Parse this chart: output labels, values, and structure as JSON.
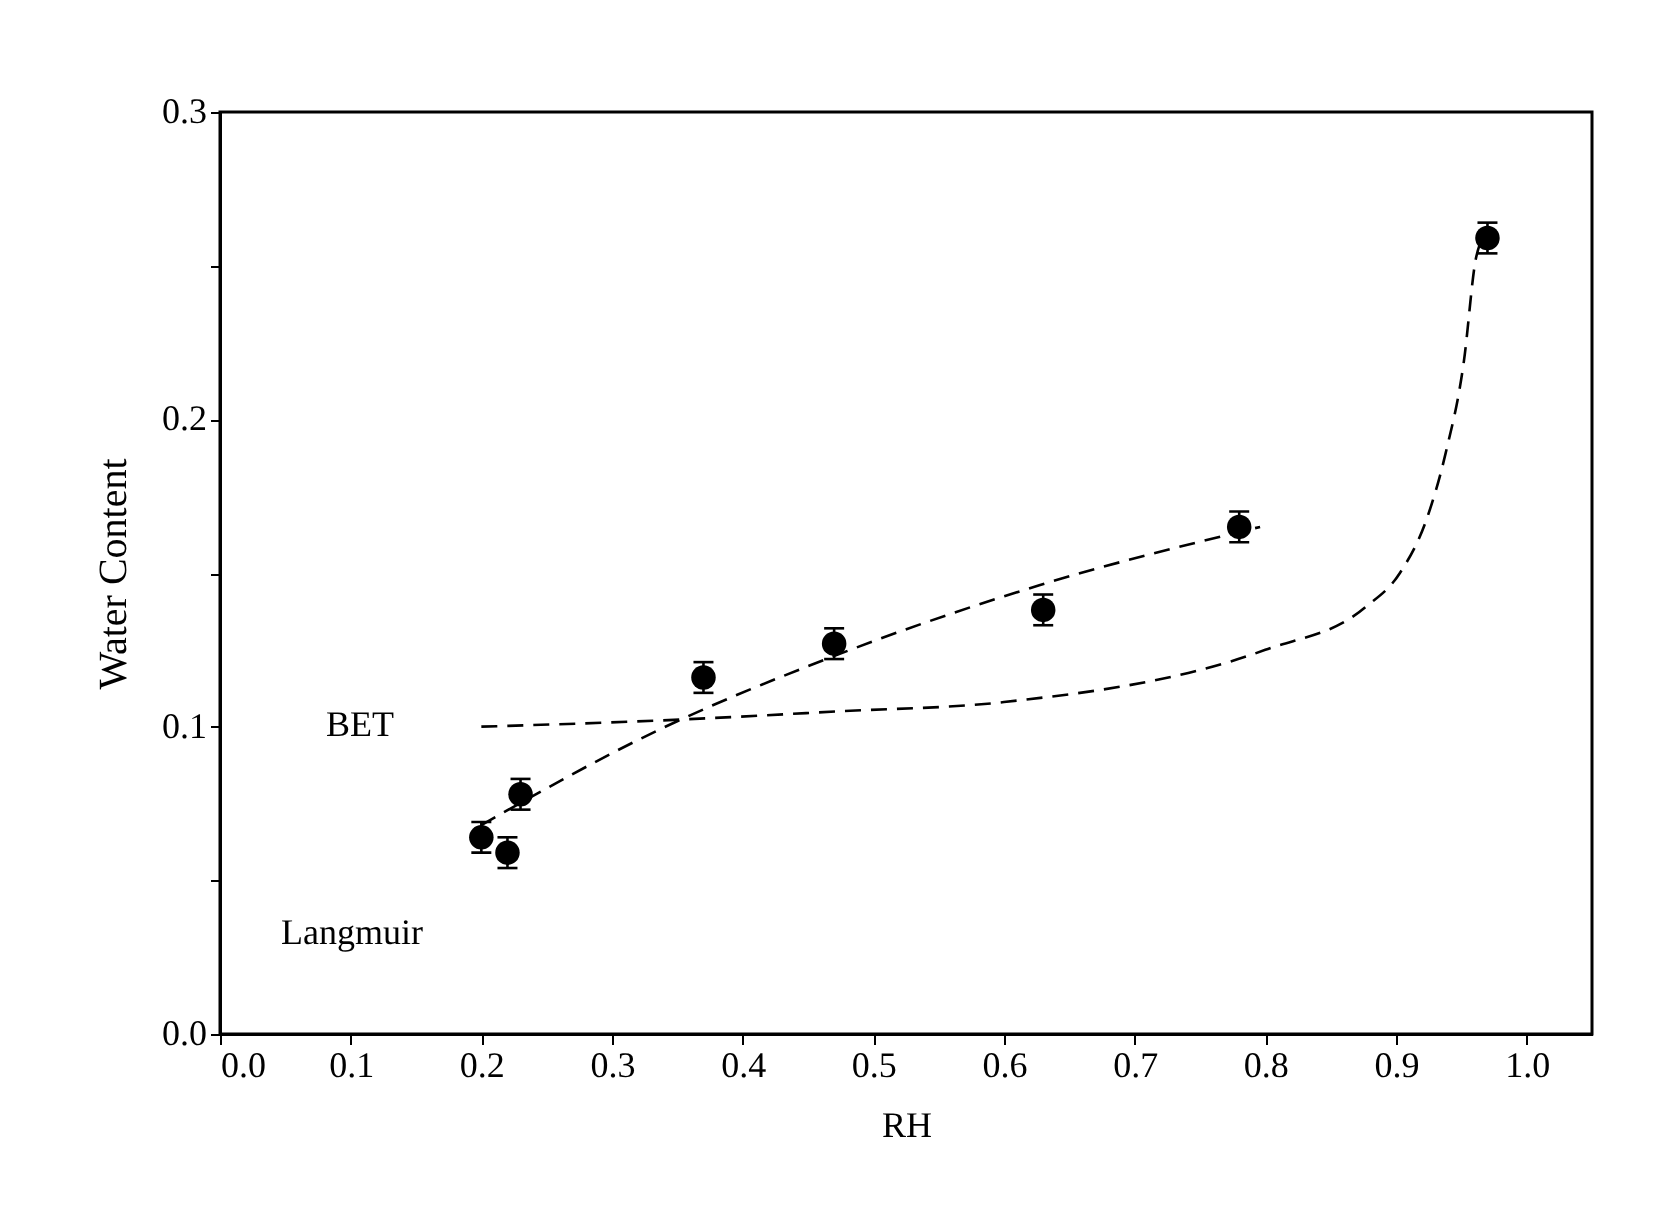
{
  "chart_data": {
    "type": "scatter",
    "xlabel": "RH",
    "ylabel": "Water Content",
    "xlim": [
      0,
      1.05
    ],
    "xticks": [
      {
        "value": 0,
        "label": "0.0"
      },
      0.1,
      0.2,
      0.3,
      0.4,
      0.5,
      0.6,
      0.7,
      0.8,
      0.9,
      {
        "value": 1,
        "label": "1.0"
      }
    ],
    "ylim": [
      0,
      0.3
    ],
    "yticks": [
      {
        "value": 0,
        "label": "0.0"
      },
      {
        "value": 0.05,
        "label": null
      },
      0.1,
      {
        "value": 0.15,
        "label": null
      },
      0.2,
      {
        "value": 0.25,
        "label": null
      },
      0.3
    ],
    "grid": false,
    "series": [
      {
        "color": "#000000",
        "marker": "circle",
        "x": [
          0.2,
          0.22,
          0.23,
          0.37,
          0.47,
          0.63,
          0.78,
          0.97
        ],
        "values": [
          0.064,
          0.059,
          0.078,
          0.116,
          0.127,
          0.138,
          0.165,
          0.259
        ],
        "errors": [
          0.005,
          0.005,
          0.005,
          0.005,
          0.005,
          0.005,
          0.005,
          0.005
        ]
      },
      {
        "type": "line",
        "color": "#000000",
        "line_style": "dashed",
        "marker": "none",
        "x": [
          0.2,
          0.336,
          0.464,
          0.627,
          0.796
        ],
        "values": [
          0.068,
          0.099,
          0.122,
          0.146,
          0.165
        ]
      },
      {
        "type": "line",
        "color": "#000000",
        "line_style": "dashed",
        "marker": "none",
        "x": [
          0.2,
          0.336,
          0.474,
          0.6,
          0.8,
          0.877,
          0.903,
          0.923,
          0.938,
          0.952,
          0.961,
          0.965
        ],
        "values": [
          0.1,
          0.102,
          0.105,
          0.108,
          0.125,
          0.139,
          0.15,
          0.167,
          0.189,
          0.219,
          0.252,
          0.258
        ]
      }
    ],
    "annotations": [
      "BET",
      "Langmuir"
    ]
  }
}
